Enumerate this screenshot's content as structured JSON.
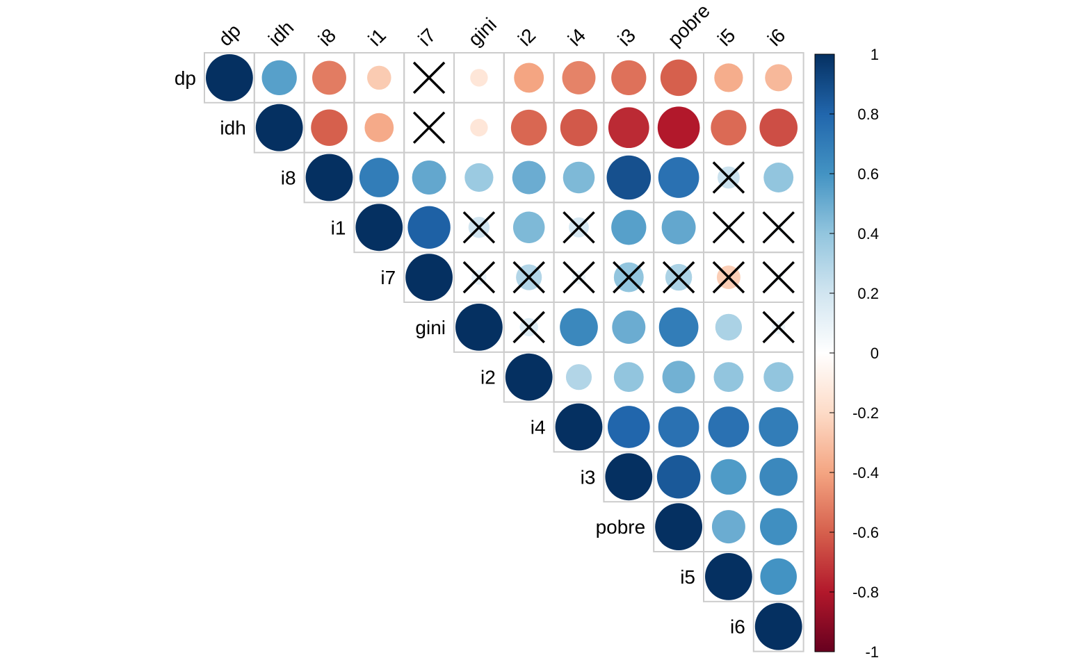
{
  "chart_data": {
    "type": "heatmap",
    "style": "correlation-circles-upper-triangle",
    "variables": [
      "dp",
      "idh",
      "i8",
      "i1",
      "i7",
      "gini",
      "i2",
      "i4",
      "i3",
      "pobre",
      "i5",
      "i6"
    ],
    "matrix": [
      [
        1.0,
        0.55,
        -0.52,
        -0.26,
        null,
        -0.14,
        -0.4,
        -0.5,
        -0.55,
        -0.6,
        -0.37,
        -0.33
      ],
      [
        null,
        1.0,
        -0.6,
        -0.38,
        null,
        -0.14,
        -0.58,
        -0.62,
        -0.75,
        -0.8,
        -0.57,
        -0.65
      ],
      [
        null,
        null,
        1.0,
        0.7,
        0.52,
        0.37,
        0.5,
        0.45,
        0.88,
        0.75,
        0.22,
        0.4
      ],
      [
        null,
        null,
        null,
        1.0,
        0.82,
        0.2,
        0.45,
        0.18,
        0.55,
        0.52,
        0.05,
        0.05
      ],
      [
        null,
        null,
        null,
        null,
        1.0,
        0.1,
        0.3,
        0.08,
        0.4,
        0.32,
        -0.25,
        0.05
      ],
      [
        null,
        null,
        null,
        null,
        null,
        1.0,
        0.15,
        0.65,
        0.5,
        0.7,
        0.32,
        0.08
      ],
      [
        null,
        null,
        null,
        null,
        null,
        null,
        1.0,
        0.3,
        0.4,
        0.48,
        0.4,
        0.4
      ],
      [
        null,
        null,
        null,
        null,
        null,
        null,
        null,
        1.0,
        0.8,
        0.75,
        0.75,
        0.7
      ],
      [
        null,
        null,
        null,
        null,
        null,
        null,
        null,
        null,
        1.0,
        0.85,
        0.57,
        0.65
      ],
      [
        null,
        null,
        null,
        null,
        null,
        null,
        null,
        null,
        null,
        1.0,
        0.5,
        0.62
      ],
      [
        null,
        null,
        null,
        null,
        null,
        null,
        null,
        null,
        null,
        null,
        1.0,
        0.6
      ],
      [
        null,
        null,
        null,
        null,
        null,
        null,
        null,
        null,
        null,
        null,
        null,
        1.0
      ]
    ],
    "insignificant": [
      [
        0,
        4
      ],
      [
        1,
        4
      ],
      [
        2,
        10
      ],
      [
        3,
        5
      ],
      [
        3,
        7
      ],
      [
        3,
        10
      ],
      [
        3,
        11
      ],
      [
        4,
        5
      ],
      [
        4,
        6
      ],
      [
        4,
        7
      ],
      [
        4,
        8
      ],
      [
        4,
        9
      ],
      [
        4,
        10
      ],
      [
        4,
        11
      ],
      [
        5,
        6
      ],
      [
        5,
        11
      ]
    ],
    "colorbar": {
      "range": [
        -1,
        1
      ],
      "ticks": [
        "1",
        "0.8",
        "0.6",
        "0.4",
        "0.2",
        "0",
        "-0.2",
        "-0.4",
        "-0.6",
        "-0.8",
        "-1"
      ]
    },
    "colors": {
      "neg_strong": "#67001f",
      "neg_mid": "#d6604d",
      "neg_light": "#fddbc7",
      "zero": "#ffffff",
      "pos_light": "#d1e5f0",
      "pos_mid": "#4393c3",
      "pos_strong": "#053061",
      "grid": "#cccccc"
    }
  }
}
